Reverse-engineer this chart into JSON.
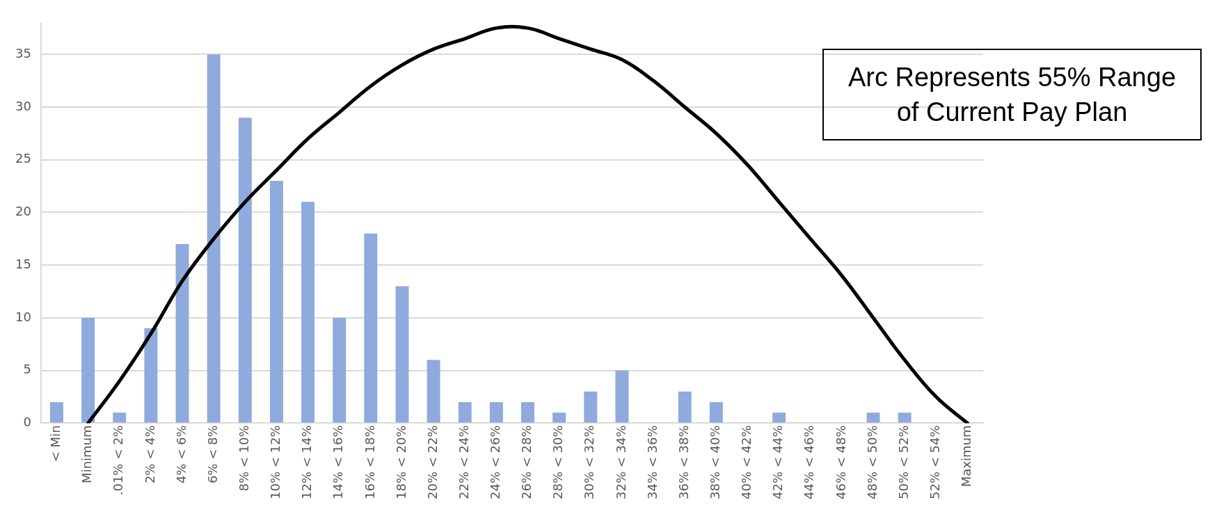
{
  "chart_data": {
    "type": "bar",
    "categories": [
      "< Min",
      "Minimum",
      ".01% < 2%",
      "2% < 4%",
      "4% < 6%",
      "6% < 8%",
      "8% < 10%",
      "10% < 12%",
      "12% < 14%",
      "14% < 16%",
      "16% < 18%",
      "18% < 20%",
      "20% < 22%",
      "22% < 24%",
      "24% < 26%",
      "26% < 28%",
      "28% < 30%",
      "30% < 32%",
      "32% < 34%",
      "34% < 36%",
      "36% < 38%",
      "38% < 40%",
      "40% < 42%",
      "42% < 44%",
      "44% < 46%",
      "46% < 48%",
      "48% < 50%",
      "50% < 52%",
      "52% < 54%",
      "Maximum"
    ],
    "series": [
      {
        "color": "#8faadc",
        "values": [
          2,
          10,
          1,
          9,
          17,
          35,
          29,
          23,
          21,
          10,
          18,
          13,
          6,
          2,
          2,
          2,
          1,
          3,
          5,
          0,
          3,
          2,
          0,
          1,
          0,
          0,
          1,
          1,
          0,
          0
        ]
      },
      {
        "type": "line",
        "color": "#000000",
        "values": [
          null,
          0,
          4,
          8.5,
          13.5,
          17.5,
          21,
          24,
          27,
          29.5,
          32,
          34,
          35.5,
          36.5,
          37.5,
          37.5,
          36.5,
          35.5,
          34.5,
          32.5,
          30,
          27.5,
          24.5,
          21,
          17.5,
          14,
          10,
          6,
          2.5,
          0
        ]
      }
    ],
    "ylim": [
      0,
      38
    ],
    "yticks": [
      0,
      5,
      10,
      15,
      20,
      25,
      30,
      35
    ],
    "grid": "y",
    "legend": false,
    "marker": "none",
    "line_style": "solid",
    "annotations": [
      "Arc Represents 55% Range of Current Pay Plan"
    ]
  }
}
